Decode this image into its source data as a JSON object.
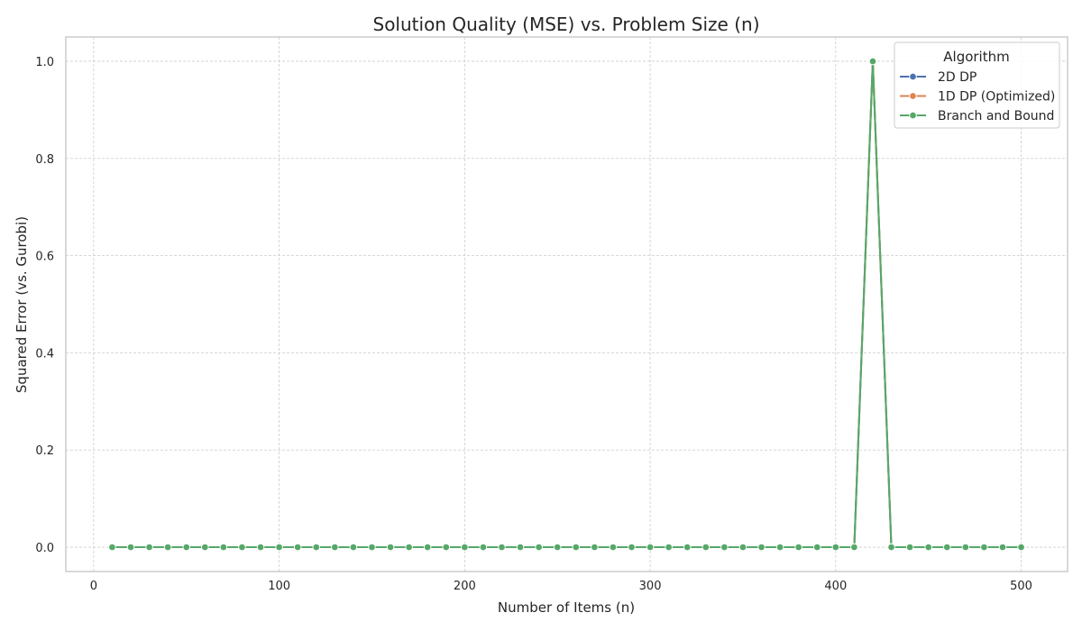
{
  "chart_data": {
    "type": "line",
    "title": "Solution Quality (MSE) vs. Problem Size (n)",
    "xlabel": "Number of Items (n)",
    "ylabel": "Squared Error (vs. Gurobi)",
    "xlim": [
      -15,
      525
    ],
    "ylim": [
      -0.05,
      1.05
    ],
    "xticks": [
      0,
      100,
      200,
      300,
      400,
      500
    ],
    "yticks": [
      0.0,
      0.2,
      0.4,
      0.6,
      0.8,
      1.0
    ],
    "xtick_labels": [
      "0",
      "100",
      "200",
      "300",
      "400",
      "500"
    ],
    "ytick_labels": [
      "0.0",
      "0.2",
      "0.4",
      "0.6",
      "0.8",
      "1.0"
    ],
    "grid": true,
    "legend_title": "Algorithm",
    "legend_position": "top-right",
    "x": [
      10,
      20,
      30,
      40,
      50,
      60,
      70,
      80,
      90,
      100,
      110,
      120,
      130,
      140,
      150,
      160,
      170,
      180,
      190,
      200,
      210,
      220,
      230,
      240,
      250,
      260,
      270,
      280,
      290,
      300,
      310,
      320,
      330,
      340,
      350,
      360,
      370,
      380,
      390,
      400,
      410,
      420,
      430,
      440,
      450,
      460,
      470,
      480,
      490,
      500
    ],
    "series": [
      {
        "name": "2D DP",
        "color": "#4c72b0",
        "values": [
          0,
          0,
          0,
          0,
          0,
          0,
          0,
          0,
          0,
          0,
          0,
          0,
          0,
          0,
          0,
          0,
          0,
          0,
          0,
          0,
          0,
          0,
          0,
          0,
          0,
          0,
          0,
          0,
          0,
          0,
          0,
          0,
          0,
          0,
          0,
          0,
          0,
          0,
          0,
          0,
          0,
          1,
          0,
          0,
          0,
          0,
          0,
          0,
          0,
          0
        ]
      },
      {
        "name": "1D DP (Optimized)",
        "color": "#dd8452",
        "values": [
          0,
          0,
          0,
          0,
          0,
          0,
          0,
          0,
          0,
          0,
          0,
          0,
          0,
          0,
          0,
          0,
          0,
          0,
          0,
          0,
          0,
          0,
          0,
          0,
          0,
          0,
          0,
          0,
          0,
          0,
          0,
          0,
          0,
          0,
          0,
          0,
          0,
          0,
          0,
          0,
          0,
          1,
          0,
          0,
          0,
          0,
          0,
          0,
          0,
          0
        ]
      },
      {
        "name": "Branch and Bound",
        "color": "#55a868",
        "values": [
          0,
          0,
          0,
          0,
          0,
          0,
          0,
          0,
          0,
          0,
          0,
          0,
          0,
          0,
          0,
          0,
          0,
          0,
          0,
          0,
          0,
          0,
          0,
          0,
          0,
          0,
          0,
          0,
          0,
          0,
          0,
          0,
          0,
          0,
          0,
          0,
          0,
          0,
          0,
          0,
          0,
          1,
          0,
          0,
          0,
          0,
          0,
          0,
          0,
          0
        ]
      }
    ]
  }
}
